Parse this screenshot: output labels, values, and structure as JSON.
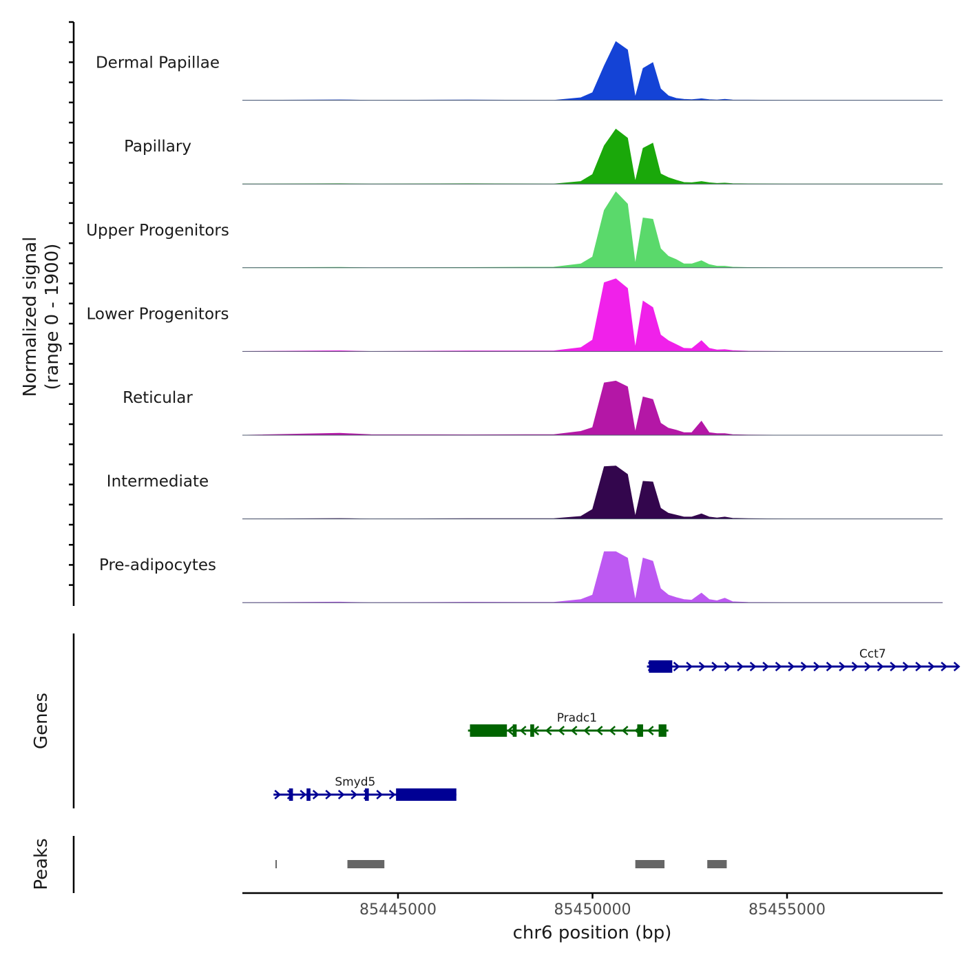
{
  "chart_data": {
    "type": "area",
    "title": "",
    "xlabel": "chr6 position (bp)",
    "ylabel_line1": "Normalized signal",
    "ylabel_line2": "(range 0 - 1900)",
    "xlim": [
      85441000,
      85459000
    ],
    "ylim": [
      0,
      1900
    ],
    "x_ticks": [
      85445000,
      85450000,
      85455000
    ],
    "x_tick_labels": [
      "85445000",
      "85450000",
      "85455000"
    ],
    "peak_profile": {
      "x": [
        85441000,
        85443500,
        85444300,
        85446800,
        85449000,
        85449700,
        85450000,
        85450300,
        85450600,
        85450900,
        85451100,
        85451300,
        85451550,
        85451750,
        85451950,
        85452150,
        85452350,
        85452550,
        85452800,
        85453000,
        85453200,
        85453400,
        85453600,
        85454000,
        85455000,
        85459000
      ],
      "relative": [
        0,
        0.01,
        0,
        0.01,
        0,
        0.04,
        0.12,
        0.55,
        0.95,
        0.82,
        0.05,
        0.55,
        0.65,
        0.25,
        0.13,
        0.1,
        0.05,
        0.05,
        0.14,
        0.05,
        0.03,
        0.04,
        0.01,
        0.01,
        0,
        0
      ]
    },
    "series": [
      {
        "name": "Dermal Papillae",
        "color": "#1443d6",
        "values": [
          0,
          6,
          0,
          4,
          0,
          40,
          120,
          540,
          920,
          790,
          50,
          500,
          590,
          180,
          70,
          30,
          15,
          10,
          25,
          10,
          5,
          15,
          5,
          3,
          0,
          0
        ]
      },
      {
        "name": "Papillary",
        "color": "#1aa80a",
        "values": [
          0,
          4,
          0,
          4,
          0,
          40,
          150,
          600,
          860,
          720,
          40,
          560,
          640,
          160,
          100,
          60,
          25,
          20,
          40,
          20,
          10,
          15,
          5,
          3,
          0,
          0
        ]
      },
      {
        "name": "Upper Progenitors",
        "color": "#5ad96b",
        "values": [
          0,
          6,
          0,
          4,
          10,
          60,
          170,
          900,
          1190,
          1000,
          60,
          780,
          760,
          300,
          180,
          130,
          60,
          60,
          110,
          50,
          25,
          25,
          10,
          4,
          0,
          0
        ]
      },
      {
        "name": "Lower Progenitors",
        "color": "#f021ea",
        "values": [
          0,
          12,
          0,
          10,
          10,
          60,
          180,
          1080,
          1140,
          990,
          60,
          790,
          690,
          260,
          170,
          110,
          50,
          45,
          170,
          50,
          25,
          30,
          15,
          5,
          0,
          0
        ]
      },
      {
        "name": "Reticular",
        "color": "#b417a6",
        "values": [
          0,
          30,
          10,
          6,
          10,
          60,
          120,
          820,
          850,
          760,
          50,
          600,
          560,
          190,
          110,
          80,
          40,
          40,
          220,
          40,
          25,
          25,
          10,
          4,
          0,
          0
        ]
      },
      {
        "name": "Intermediate",
        "color": "#33064d",
        "values": [
          0,
          6,
          0,
          4,
          5,
          40,
          150,
          820,
          830,
          700,
          40,
          590,
          580,
          170,
          90,
          60,
          30,
          30,
          80,
          30,
          15,
          30,
          10,
          4,
          0,
          0
        ]
      },
      {
        "name": "Pre-adipocytes",
        "color": "#bd59f2",
        "values": [
          0,
          10,
          0,
          8,
          5,
          50,
          120,
          800,
          800,
          700,
          40,
          700,
          650,
          220,
          120,
          80,
          50,
          40,
          150,
          50,
          30,
          70,
          15,
          4,
          0,
          0
        ]
      }
    ],
    "genes_axis_label": "Genes",
    "genes": [
      {
        "name": "Cct7",
        "start": 85451400,
        "end": 85459400,
        "strand": "+",
        "color": "#000094",
        "row": 0,
        "exons": [
          [
            85451450,
            85452050
          ]
        ]
      },
      {
        "name": "Pradc1",
        "start": 85446800,
        "end": 85451950,
        "strand": "-",
        "color": "#006400",
        "row": 1,
        "exons": [
          [
            85446850,
            85447800
          ],
          [
            85447950,
            85448050
          ],
          [
            85448400,
            85448500
          ],
          [
            85451150,
            85451300
          ],
          [
            85451700,
            85451900
          ]
        ]
      },
      {
        "name": "Smyd5",
        "start": 85441800,
        "end": 85446500,
        "strand": "+",
        "color": "#000094",
        "row": 2,
        "exons": [
          [
            85442200,
            85442300
          ],
          [
            85442650,
            85442750
          ],
          [
            85444150,
            85444250
          ],
          [
            85444950,
            85446500
          ]
        ]
      }
    ],
    "peaks_axis_label": "Peaks",
    "peaks": [
      [
        85441850,
        85441880
      ],
      [
        85443700,
        85444650
      ],
      [
        85451100,
        85451850
      ],
      [
        85452950,
        85453450
      ]
    ],
    "peak_color": "#666666"
  }
}
